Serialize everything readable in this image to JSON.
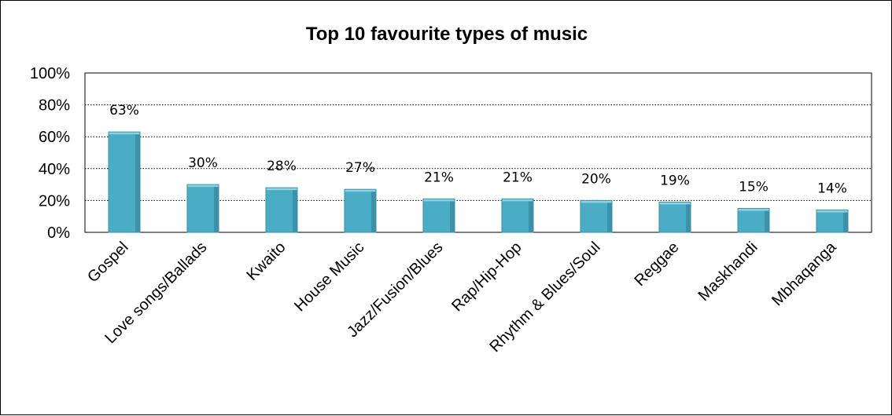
{
  "chart_data": {
    "type": "bar",
    "title": "Top 10 favourite types of music",
    "categories": [
      "Gospel",
      "Love songs/Ballads",
      "Kwaito",
      "House Music",
      "Jazz/Fusion/Blues",
      "Rap/Hip-Hop",
      "Rhythm & Blues/Soul",
      "Reggae",
      "Maskhandi",
      "Mbhaqanga"
    ],
    "values": [
      63,
      30,
      28,
      27,
      21,
      21,
      20,
      19,
      15,
      14
    ],
    "value_labels": [
      "63%",
      "30%",
      "28%",
      "27%",
      "21%",
      "21%",
      "20%",
      "19%",
      "15%",
      "14%"
    ],
    "ylim": [
      0,
      100
    ],
    "yticks": [
      0,
      20,
      40,
      60,
      80,
      100
    ],
    "ytick_labels": [
      "0%",
      "20%",
      "40%",
      "60%",
      "80%",
      "100%"
    ],
    "xlabel": "",
    "ylabel": "",
    "grid": "horizontal-dotted",
    "legend": "none",
    "bar_color": "#4bacc6",
    "bar_top_color": "#8fd3e3",
    "bar_shadow_color": "#2f7f93"
  }
}
